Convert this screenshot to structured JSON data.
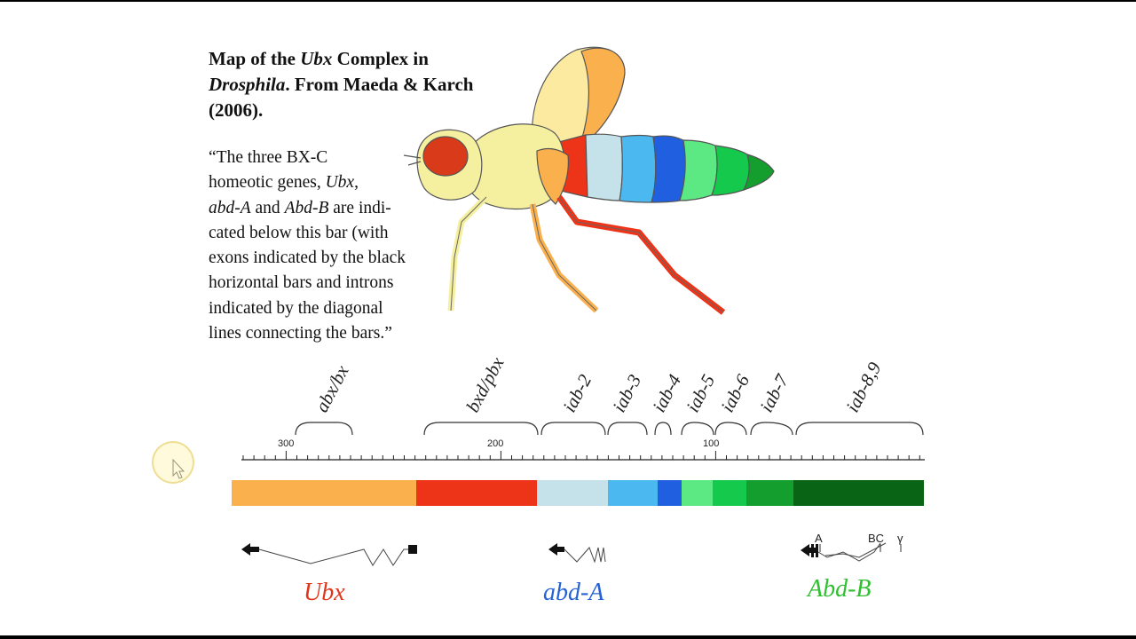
{
  "title": {
    "line1_pre": "Map of the ",
    "line1_italic": "Ubx",
    "line1_post": " Complex in",
    "line2_italic": "Drosphila",
    "line2_post": ".  From Maeda & Karch",
    "line3": "(2006)."
  },
  "quote": {
    "p1": "“The three BX-C",
    "p2": "homeotic genes, ",
    "p2_italic": "Ubx",
    "p2_post": ",",
    "p3_italic1": "abd-A",
    "p3_mid": " and ",
    "p3_italic2": "Abd-B",
    "p3_post": " are indi-",
    "p4": "cated below this bar (with",
    "p5": "exons indicated by the black",
    "p6": "horizontal bars and introns",
    "p7": "indicated by the diagonal",
    "p8": "lines connecting the bars.”"
  },
  "regions": [
    "abx/bx",
    "bxd/pbx",
    "iab-2",
    "iab-3",
    "iab-4",
    "iab-5",
    "iab-6",
    "iab-7",
    "iab-8,9"
  ],
  "scale": {
    "ticks": [
      "300",
      "200",
      "100"
    ]
  },
  "colors": {
    "ubx": "#e2361c",
    "abd_a": "#2563d4",
    "abd_b": "#2fbf2f",
    "bar_segments": [
      "#fbb04e",
      "#ee3418",
      "#c5e2ea",
      "#4bb8f0",
      "#1f5fe0",
      "#5ce882",
      "#14c94c",
      "#139e2e",
      "#0a6416"
    ]
  },
  "genes": {
    "ubx": "Ubx",
    "abd_a": "abd-A",
    "abd_b": "Abd-B",
    "abd_b_promoters": [
      "A",
      "BC",
      "γ"
    ]
  }
}
